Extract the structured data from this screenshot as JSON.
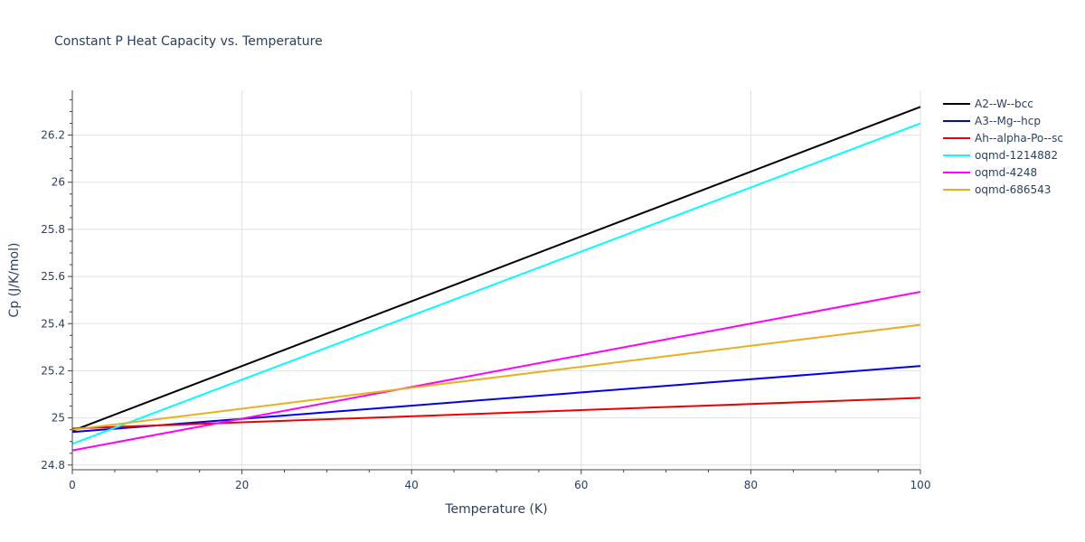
{
  "chart_data": {
    "type": "line",
    "title": "Constant P Heat Capacity vs. Temperature",
    "xlabel": "Temperature (K)",
    "ylabel": "Cp (J/K/mol)",
    "xlim": [
      0,
      100
    ],
    "ylim": [
      24.78,
      26.39
    ],
    "grid": true,
    "legend_position": "top-right",
    "x_ticks": [
      0,
      20,
      40,
      60,
      80,
      100
    ],
    "x_tick_labels": [
      "0",
      "20",
      "40",
      "60",
      "80",
      "100"
    ],
    "y_ticks": [
      24.8,
      25.0,
      25.2,
      25.4,
      25.6,
      25.8,
      26.0,
      26.2
    ],
    "y_tick_labels": [
      "24.8",
      "25",
      "25.2",
      "25.4",
      "25.6",
      "25.8",
      "26",
      "26.2"
    ],
    "x": [
      0,
      100
    ],
    "series": [
      {
        "name": "A2--W--bcc",
        "color": "#000000",
        "values": [
          24.945,
          26.32
        ]
      },
      {
        "name": "A3--Mg--hcp",
        "color": "#0000ee",
        "values": [
          24.94,
          25.22
        ]
      },
      {
        "name": "Ah--alpha-Po--sc",
        "color": "#ee0000",
        "values": [
          24.955,
          25.085
        ]
      },
      {
        "name": "oqmd-1214882",
        "color": "#00ffff",
        "values": [
          24.89,
          26.25
        ]
      },
      {
        "name": "oqmd-4248",
        "color": "#ff00ff",
        "values": [
          24.862,
          25.535
        ]
      },
      {
        "name": "oqmd-686543",
        "color": "#e6b020",
        "values": [
          24.95,
          25.395
        ]
      }
    ]
  }
}
